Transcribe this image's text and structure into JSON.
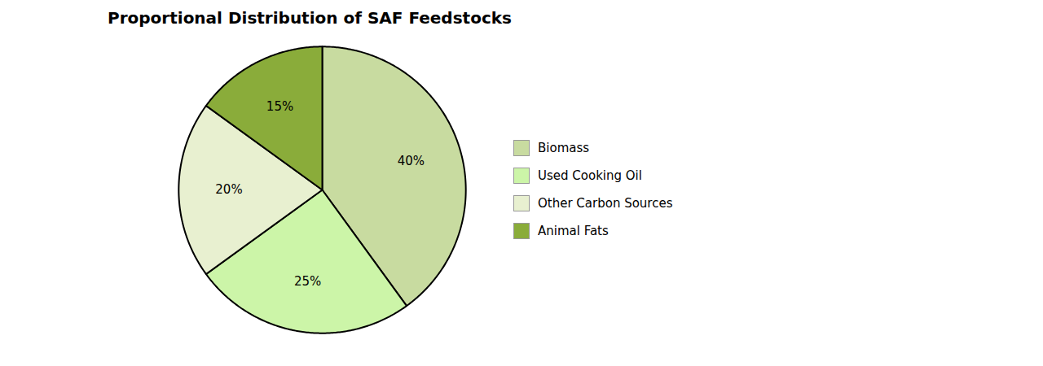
{
  "chart_data": {
    "type": "pie",
    "title": "Proportional Distribution of SAF Feedstocks",
    "categories": [
      "Biomass",
      "Used Cooking Oil",
      "Other Carbon Sources",
      "Animal Fats"
    ],
    "values": [
      40,
      25,
      20,
      15
    ],
    "value_labels": [
      "40%",
      "25%",
      "20%",
      "15%"
    ],
    "colors": [
      "#c8dba0",
      "#ccf5a8",
      "#e8f0d0",
      "#8aac3a"
    ],
    "data_labels": true,
    "legend": "right"
  }
}
